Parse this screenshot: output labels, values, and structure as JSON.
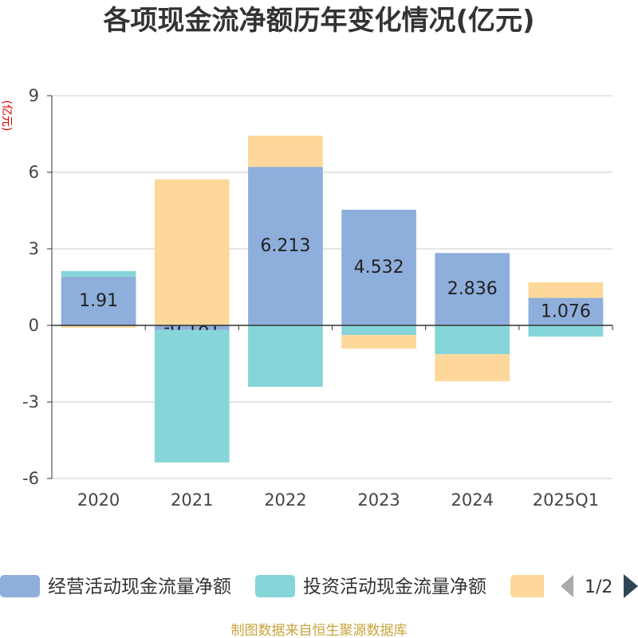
{
  "chart_data": {
    "type": "bar",
    "stacked": true,
    "title": "各项现金流净额历年变化情况(亿元)",
    "xlabel": "",
    "ylabel": "(亿元)",
    "categories": [
      "2020",
      "2021",
      "2022",
      "2023",
      "2024",
      "2025Q1"
    ],
    "ylim": [
      -6,
      9
    ],
    "yticks": [
      -6,
      -3,
      0,
      3,
      6,
      9
    ],
    "grid": true,
    "legend_position": "bottom",
    "series": [
      {
        "name": "经营活动现金流量净额",
        "color": "#8eaedb",
        "values": [
          1.91,
          -0.181,
          6.213,
          4.532,
          2.836,
          1.076
        ],
        "show_labels": true
      },
      {
        "name": "投资活动现金流量净额",
        "color": "#86d5d8",
        "values": [
          0.22,
          -5.19,
          -2.41,
          -0.38,
          -1.13,
          -0.44
        ]
      },
      {
        "color": "#fdd89a",
        "values": [
          -0.09,
          5.72,
          1.22,
          -0.53,
          -1.06,
          0.61
        ]
      }
    ]
  },
  "legend": {
    "page_indicator": "1/2",
    "prev_color": "#aaaaaa",
    "next_color": "#2f4554"
  },
  "footer": {
    "source": "制图数据来自恒生聚源数据库"
  }
}
